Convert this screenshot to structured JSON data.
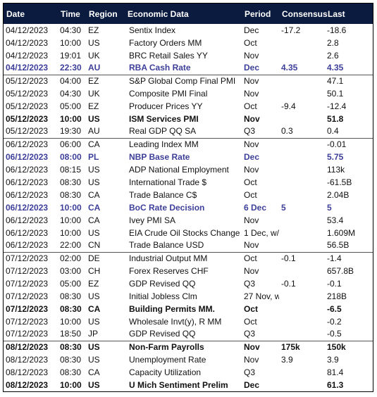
{
  "columns": [
    "Date",
    "Time",
    "Region",
    "Economic Data",
    "Period",
    "Consensus",
    "Last"
  ],
  "rows": [
    {
      "date": "04/12/2023",
      "time": "04:30",
      "region": "EZ",
      "event": "Sentix Index",
      "period": "Dec",
      "consensus": "-17.2",
      "last": "-18.6",
      "style": "normal",
      "sep": false
    },
    {
      "date": "04/12/2023",
      "time": "10:00",
      "region": "US",
      "event": "Factory Orders MM",
      "period": "Oct",
      "consensus": "",
      "last": "2.8",
      "style": "normal",
      "sep": false
    },
    {
      "date": "04/12/2023",
      "time": "19:01",
      "region": "UK",
      "event": "BRC Retail Sales YY",
      "period": "Nov",
      "consensus": "",
      "last": "2.6",
      "style": "normal",
      "sep": false
    },
    {
      "date": "04/12/2023",
      "time": "22:30",
      "region": "AU",
      "event": "RBA Cash Rate",
      "period": "Dec",
      "consensus": "4.35",
      "last": "4.35",
      "style": "highlight",
      "sep": false
    },
    {
      "date": "05/12/2023",
      "time": "04:00",
      "region": "EZ",
      "event": "S&P Global Comp Final PMI",
      "period": "Nov",
      "consensus": "",
      "last": "47.1",
      "style": "normal",
      "sep": true
    },
    {
      "date": "05/12/2023",
      "time": "04:30",
      "region": "UK",
      "event": "Composite PMI Final",
      "period": "Nov",
      "consensus": "",
      "last": "50.1",
      "style": "normal",
      "sep": false
    },
    {
      "date": "05/12/2023",
      "time": "05:00",
      "region": "EZ",
      "event": "Producer Prices YY",
      "period": "Oct",
      "consensus": "-9.4",
      "last": "-12.4",
      "style": "normal",
      "sep": false
    },
    {
      "date": "05/12/2023",
      "time": "10:00",
      "region": "US",
      "event": "ISM Services PMI",
      "period": "Nov",
      "consensus": "",
      "last": "51.8",
      "style": "bold",
      "sep": false
    },
    {
      "date": "05/12/2023",
      "time": "19:30",
      "region": "AU",
      "event": "Real GDP QQ SA",
      "period": "Q3",
      "consensus": "0.3",
      "last": "0.4",
      "style": "normal",
      "sep": false
    },
    {
      "date": "06/12/2023",
      "time": "06:00",
      "region": "CA",
      "event": "Leading Index MM",
      "period": "Nov",
      "consensus": "",
      "last": "-0.01",
      "style": "normal",
      "sep": true
    },
    {
      "date": "06/12/2023",
      "time": "08:00",
      "region": "PL",
      "event": "NBP Base Rate",
      "period": "Dec",
      "consensus": "",
      "last": "5.75",
      "style": "highlight",
      "sep": false
    },
    {
      "date": "06/12/2023",
      "time": "08:15",
      "region": "US",
      "event": "ADP National Employment",
      "period": "Nov",
      "consensus": "",
      "last": "113k",
      "style": "normal",
      "sep": false
    },
    {
      "date": "06/12/2023",
      "time": "08:30",
      "region": "US",
      "event": "International Trade $",
      "period": "Oct",
      "consensus": "",
      "last": "-61.5B",
      "style": "normal",
      "sep": false
    },
    {
      "date": "06/12/2023",
      "time": "08:30",
      "region": "CA",
      "event": "Trade Balance C$",
      "period": "Oct",
      "consensus": "",
      "last": "2.04B",
      "style": "normal",
      "sep": false
    },
    {
      "date": "06/12/2023",
      "time": "10:00",
      "region": "CA",
      "event": "BoC Rate Decision",
      "period": "6 Dec",
      "consensus": "5",
      "last": "5",
      "style": "highlight",
      "sep": false
    },
    {
      "date": "06/12/2023",
      "time": "10:00",
      "region": "CA",
      "event": "Ivey PMI SA",
      "period": "Nov",
      "consensus": "",
      "last": "53.4",
      "style": "normal",
      "sep": false
    },
    {
      "date": "06/12/2023",
      "time": "10:00",
      "region": "US",
      "event": "EIA Crude Oil Stocks Change",
      "period": "1 Dec, w/e",
      "consensus": "",
      "last": "1.609M",
      "style": "normal",
      "sep": false
    },
    {
      "date": "06/12/2023",
      "time": "22:00",
      "region": "CN",
      "event": "Trade Balance USD",
      "period": "Nov",
      "consensus": "",
      "last": "56.5B",
      "style": "normal",
      "sep": false
    },
    {
      "date": "07/12/2023",
      "time": "02:00",
      "region": "DE",
      "event": "Industrial Output MM",
      "period": "Oct",
      "consensus": "-0.1",
      "last": "-1.4",
      "style": "normal",
      "sep": true
    },
    {
      "date": "07/12/2023",
      "time": "03:00",
      "region": "CH",
      "event": "Forex Reserves CHF",
      "period": "Nov",
      "consensus": "",
      "last": "657.8B",
      "style": "normal",
      "sep": false
    },
    {
      "date": "07/12/2023",
      "time": "05:00",
      "region": "EZ",
      "event": "GDP Revised QQ",
      "period": "Q3",
      "consensus": "-0.1",
      "last": "-0.1",
      "style": "normal",
      "sep": false
    },
    {
      "date": "07/12/2023",
      "time": "08:30",
      "region": "US",
      "event": "Initial Jobless Clm",
      "period": "27 Nov, w/e",
      "consensus": "",
      "last": "218B",
      "style": "normal",
      "sep": false
    },
    {
      "date": "07/12/2023",
      "time": "08:30",
      "region": "CA",
      "event": "Building Permits MM.",
      "period": "Oct",
      "consensus": "",
      "last": "-6.5",
      "style": "bold",
      "sep": false
    },
    {
      "date": "07/12/2023",
      "time": "10:00",
      "region": "US",
      "event": "Wholesale Invt(y), R MM",
      "period": "Oct",
      "consensus": "",
      "last": "-0.2",
      "style": "normal",
      "sep": false
    },
    {
      "date": "07/12/2023",
      "time": "18:50",
      "region": "JP",
      "event": "GDP Revised QQ",
      "period": "Q3",
      "consensus": "",
      "last": "-0.5",
      "style": "normal",
      "sep": false
    },
    {
      "date": "08/12/2023",
      "time": "08:30",
      "region": "US",
      "event": "Non-Farm Payrolls",
      "period": "Nov",
      "consensus": "175k",
      "last": "150k",
      "style": "bold",
      "sep": true
    },
    {
      "date": "08/12/2023",
      "time": "08:30",
      "region": "US",
      "event": "Unemployment Rate",
      "period": "Nov",
      "consensus": "3.9",
      "last": "3.9",
      "style": "normal",
      "sep": false
    },
    {
      "date": "08/12/2023",
      "time": "08:30",
      "region": "CA",
      "event": "Capacity Utilization",
      "period": "Q3",
      "consensus": "",
      "last": "81.4",
      "style": "normal",
      "sep": false
    },
    {
      "date": "08/12/2023",
      "time": "10:00",
      "region": "US",
      "event": "U Mich Sentiment Prelim",
      "period": "Dec",
      "consensus": "",
      "last": "61.3",
      "style": "bold",
      "sep": false
    }
  ],
  "colors": {
    "header_bg": "#0b1b3f",
    "header_text": "#ffffff",
    "highlight_text": "#3d3f9a",
    "body_text": "#111111",
    "separator": "#555555"
  }
}
